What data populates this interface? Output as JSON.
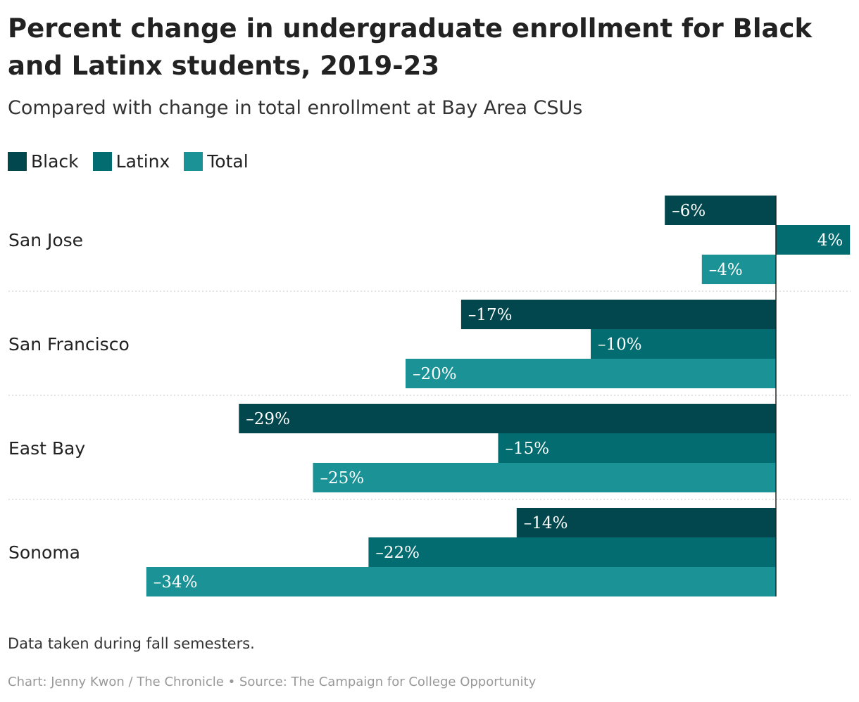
{
  "title": "Percent change in undergraduate enrollment for Black and Latinx students, 2019-23",
  "subtitle": "Compared with change in total enrollment at Bay Area CSUs",
  "legend": [
    {
      "label": "Black",
      "color": "#02474d"
    },
    {
      "label": "Latinx",
      "color": "#036c70"
    },
    {
      "label": "Total",
      "color": "#1a9296"
    }
  ],
  "note": "Data taken during fall semesters.",
  "credit": "Chart: Jenny Kwon / The Chronicle • Source: The Campaign for College Opportunity",
  "chart_data": {
    "type": "bar",
    "orientation": "horizontal",
    "categories": [
      "San Jose",
      "San Francisco",
      "East Bay",
      "Sonoma"
    ],
    "series": [
      {
        "name": "Black",
        "color": "#02474d",
        "values": [
          -6,
          -17,
          -29,
          -14
        ],
        "labels": [
          "–6%",
          "–17%",
          "–29%",
          "–14%"
        ]
      },
      {
        "name": "Latinx",
        "color": "#036c70",
        "values": [
          4,
          -10,
          -15,
          -22
        ],
        "labels": [
          "4%",
          "–10%",
          "–15%",
          "–22%"
        ]
      },
      {
        "name": "Total",
        "color": "#1a9296",
        "values": [
          -4,
          -20,
          -25,
          -34
        ],
        "labels": [
          "–4%",
          "–20%",
          "–25%",
          "–34%"
        ]
      }
    ],
    "xlim": [
      -34,
      4
    ],
    "grid": false,
    "legend_position": "top-left"
  }
}
